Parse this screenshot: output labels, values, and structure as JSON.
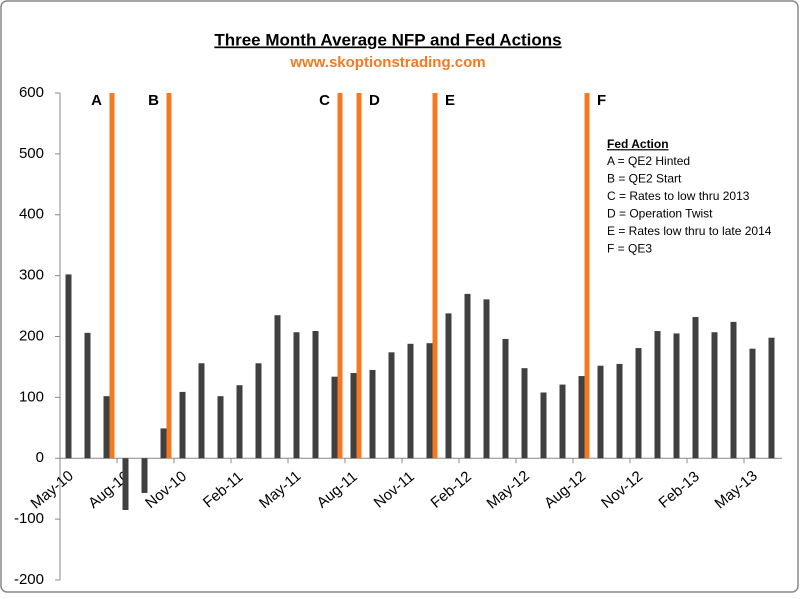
{
  "chart_data": {
    "type": "bar",
    "title": "Three Month Average NFP and Fed Actions",
    "subtitle": "www.skoptionstrading.com",
    "categories": [
      "May-10",
      null,
      null,
      "Aug-10",
      null,
      null,
      "Nov-10",
      null,
      null,
      "Feb-11",
      null,
      null,
      "May-11",
      null,
      null,
      "Aug-11",
      null,
      null,
      "Nov-11",
      null,
      null,
      "Feb-12",
      null,
      null,
      "May-12",
      null,
      null,
      "Aug-12",
      null,
      null,
      "Nov-12",
      null,
      null,
      "Feb-13",
      null,
      null,
      "May-13",
      null
    ],
    "series": [
      {
        "color": "#404040",
        "values": [
          302,
          206,
          102,
          -85,
          -57,
          49,
          109,
          156,
          102,
          120,
          156,
          235,
          207,
          209,
          134,
          140,
          145,
          174,
          188,
          189,
          238,
          270,
          261,
          196,
          148,
          108,
          121,
          135,
          152,
          155,
          181,
          209,
          205,
          232,
          207,
          224,
          180,
          198
        ]
      },
      {
        "color": "#f47920",
        "values": [
          null,
          null,
          600,
          null,
          null,
          600,
          null,
          null,
          null,
          null,
          null,
          null,
          null,
          null,
          600,
          600,
          null,
          null,
          null,
          600,
          null,
          null,
          null,
          null,
          null,
          null,
          null,
          600,
          null,
          null,
          null,
          null,
          null,
          null,
          null,
          null,
          null,
          null
        ],
        "value_labels": [
          null,
          null,
          "A",
          null,
          null,
          "B",
          null,
          null,
          null,
          null,
          null,
          null,
          null,
          null,
          "C",
          "D",
          null,
          null,
          null,
          "E",
          null,
          null,
          null,
          null,
          null,
          null,
          null,
          "F",
          null,
          null,
          null,
          null,
          null,
          null,
          null,
          null,
          null,
          null
        ]
      }
    ],
    "ylim": [
      -200,
      600
    ],
    "yticks": [
      -200,
      -100,
      0,
      100,
      200,
      300,
      400,
      500,
      600
    ],
    "legend": {
      "title": "Fed Action",
      "items": [
        "A = QE2 Hinted",
        "B = QE2 Start",
        "C = Rates to low thru 2013",
        "D = Operation Twist",
        "E = Rates low thru to late 2014",
        "F  = QE3"
      ]
    }
  }
}
